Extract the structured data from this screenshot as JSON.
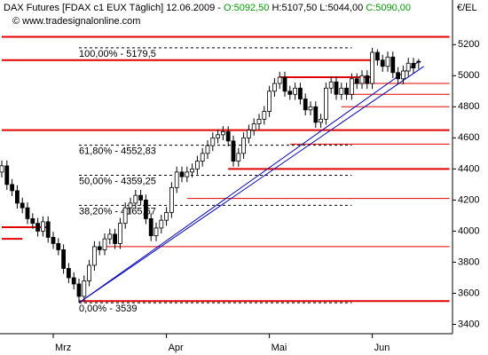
{
  "chart_data": {
    "type": "candlestick",
    "title_parts": [
      {
        "text": "DAX Futures [FDAX c1 EUX  Täglich] 12.06.2009 - ",
        "color": "#000000"
      },
      {
        "text": "O:5092,50",
        "color": "#00a000"
      },
      {
        "text": " H:5107,50 L:5044,00 ",
        "color": "#000000"
      },
      {
        "text": "C:5090,00",
        "color": "#00a000"
      }
    ],
    "subtitle": "© www.tradesignalonline.com",
    "y_axis_label": "€/EL",
    "categories": [
      null,
      null,
      null,
      null,
      null,
      null,
      null,
      null,
      null,
      null,
      "Mrz",
      null,
      null,
      null,
      null,
      null,
      null,
      null,
      null,
      null,
      null,
      null,
      null,
      null,
      null,
      null,
      null,
      null,
      null,
      null,
      null,
      null,
      "Apr",
      null,
      null,
      null,
      null,
      null,
      null,
      null,
      null,
      null,
      null,
      null,
      null,
      null,
      null,
      null,
      null,
      null,
      null,
      null,
      "Mai",
      null,
      null,
      null,
      null,
      null,
      null,
      null,
      null,
      null,
      null,
      null,
      null,
      null,
      null,
      null,
      null,
      null,
      null,
      null,
      "Jun",
      null,
      null,
      null,
      null,
      null,
      null,
      null,
      null,
      null
    ],
    "open": [
      4380,
      4420,
      4300,
      4260,
      4180,
      4150,
      4080,
      4050,
      4000,
      4060,
      3960,
      3920,
      3880,
      3760,
      3700,
      3660,
      3580,
      3680,
      3780,
      3900,
      3880,
      3950,
      3980,
      3920,
      4050,
      4150,
      4180,
      4230,
      4200,
      4080,
      3970,
      4020,
      4070,
      4120,
      4280,
      4380,
      4350,
      4380,
      4400,
      4450,
      4500,
      4550,
      4600,
      4620,
      4640,
      4580,
      4450,
      4500,
      4600,
      4650,
      4690,
      4720,
      4770,
      4900,
      4950,
      4990,
      4900,
      4880,
      4920,
      4850,
      4780,
      4800,
      4700,
      4720,
      4920,
      4960,
      4880,
      4920,
      4880,
      4980,
      4950,
      5000,
      4950,
      5150,
      5100,
      5060,
      5120,
      5020,
      4980,
      5030,
      5080,
      5092.5
    ],
    "high": [
      4455,
      4455,
      4335,
      4295,
      4215,
      4185,
      4115,
      4085,
      4095,
      4095,
      3995,
      3955,
      3915,
      3795,
      3735,
      3695,
      3715,
      3815,
      3935,
      3935,
      3985,
      4015,
      4015,
      4085,
      4185,
      4215,
      4265,
      4265,
      4235,
      4115,
      4055,
      4105,
      4155,
      4315,
      4415,
      4415,
      4415,
      4435,
      4485,
      4535,
      4585,
      4635,
      4655,
      4675,
      4675,
      4615,
      4535,
      4635,
      4685,
      4725,
      4755,
      4805,
      4935,
      4985,
      5025,
      5025,
      4935,
      4955,
      4955,
      4885,
      4835,
      4835,
      4755,
      4955,
      4995,
      4995,
      4955,
      4955,
      5015,
      5015,
      5035,
      5035,
      5179.5,
      5170,
      5135,
      5155,
      5155,
      5055,
      5065,
      5115,
      5115,
      5107.5
    ],
    "low": [
      4345,
      4265,
      4225,
      4145,
      4115,
      4045,
      4015,
      3965,
      3965,
      3925,
      3885,
      3845,
      3725,
      3665,
      3625,
      3539,
      3545,
      3645,
      3745,
      3845,
      3845,
      3915,
      3885,
      3885,
      4015,
      4115,
      4145,
      4165,
      4045,
      3935,
      3935,
      3985,
      4035,
      4085,
      4245,
      4315,
      4315,
      4345,
      4365,
      4415,
      4465,
      4515,
      4565,
      4585,
      4545,
      4415,
      4415,
      4465,
      4565,
      4615,
      4655,
      4685,
      4735,
      4865,
      4915,
      4865,
      4845,
      4845,
      4815,
      4745,
      4745,
      4665,
      4665,
      4685,
      4885,
      4845,
      4845,
      4845,
      4845,
      4915,
      4915,
      4915,
      4915,
      5065,
      5025,
      5025,
      4985,
      4945,
      4945,
      4995,
      5015,
      5044
    ],
    "close": [
      4420,
      4300,
      4260,
      4180,
      4150,
      4080,
      4050,
      4000,
      4060,
      3960,
      3920,
      3880,
      3760,
      3700,
      3660,
      3580,
      3680,
      3780,
      3900,
      3880,
      3950,
      3980,
      3920,
      4050,
      4150,
      4180,
      4230,
      4200,
      4080,
      3970,
      4020,
      4070,
      4120,
      4280,
      4380,
      4350,
      4380,
      4400,
      4450,
      4500,
      4550,
      4600,
      4620,
      4640,
      4580,
      4450,
      4500,
      4600,
      4650,
      4690,
      4720,
      4770,
      4900,
      4950,
      4990,
      4900,
      4880,
      4920,
      4850,
      4780,
      4800,
      4700,
      4720,
      4920,
      4960,
      4880,
      4920,
      4880,
      4980,
      4950,
      5000,
      4950,
      5150,
      5100,
      5060,
      5120,
      5020,
      4980,
      5030,
      5080,
      5050,
      5090
    ],
    "ylim": [
      3340,
      5270
    ],
    "yticks": [
      3400,
      3600,
      3800,
      4000,
      4200,
      4400,
      4600,
      4800,
      5000,
      5200
    ],
    "fib_levels": [
      {
        "value": 5179.5,
        "label": "100,00% - 5179,5"
      },
      {
        "value": 4552.83,
        "label": "61,80% - 4552,83"
      },
      {
        "value": 4359.25,
        "label": "50,00% - 4359,25"
      },
      {
        "value": 4165.67,
        "label": "38,20% - 4165,67"
      },
      {
        "value": 3539,
        "label": "0,00% - 3539"
      }
    ],
    "fib_color": "#000000",
    "levels": [
      {
        "value": 5250,
        "from": 0,
        "to": 87,
        "weight": "thick"
      },
      {
        "value": 5100,
        "from": 0,
        "to": 72,
        "weight": "thick"
      },
      {
        "value": 4990,
        "from": 54,
        "to": 72,
        "weight": "thick"
      },
      {
        "value": 4650,
        "from": 0,
        "to": 87,
        "weight": "thick"
      },
      {
        "value": 4400,
        "from": 44,
        "to": 87,
        "weight": "thick"
      },
      {
        "value": 4025,
        "from": 0,
        "to": 9,
        "weight": "thick"
      },
      {
        "value": 3950,
        "from": 0,
        "to": 4,
        "weight": "thick"
      },
      {
        "value": 3550,
        "from": 15,
        "to": 87,
        "weight": "thick"
      },
      {
        "value": 4950,
        "from": 68,
        "to": 87,
        "weight": "thin"
      },
      {
        "value": 4880,
        "from": 67,
        "to": 87,
        "weight": "thin"
      },
      {
        "value": 4800,
        "from": 66,
        "to": 87,
        "weight": "thin"
      },
      {
        "value": 4560,
        "from": 56,
        "to": 87,
        "weight": "thin"
      },
      {
        "value": 4210,
        "from": 36,
        "to": 87,
        "weight": "thin"
      },
      {
        "value": 3900,
        "from": 20,
        "to": 87,
        "weight": "thin"
      }
    ],
    "level_color": "#e00000",
    "trendlines": [
      {
        "from": [
          15,
          3539
        ],
        "to": [
          82,
          5060
        ]
      },
      {
        "from": [
          15,
          3539
        ],
        "to": [
          81,
          5090
        ]
      }
    ],
    "trend_color": "#0000c0"
  }
}
